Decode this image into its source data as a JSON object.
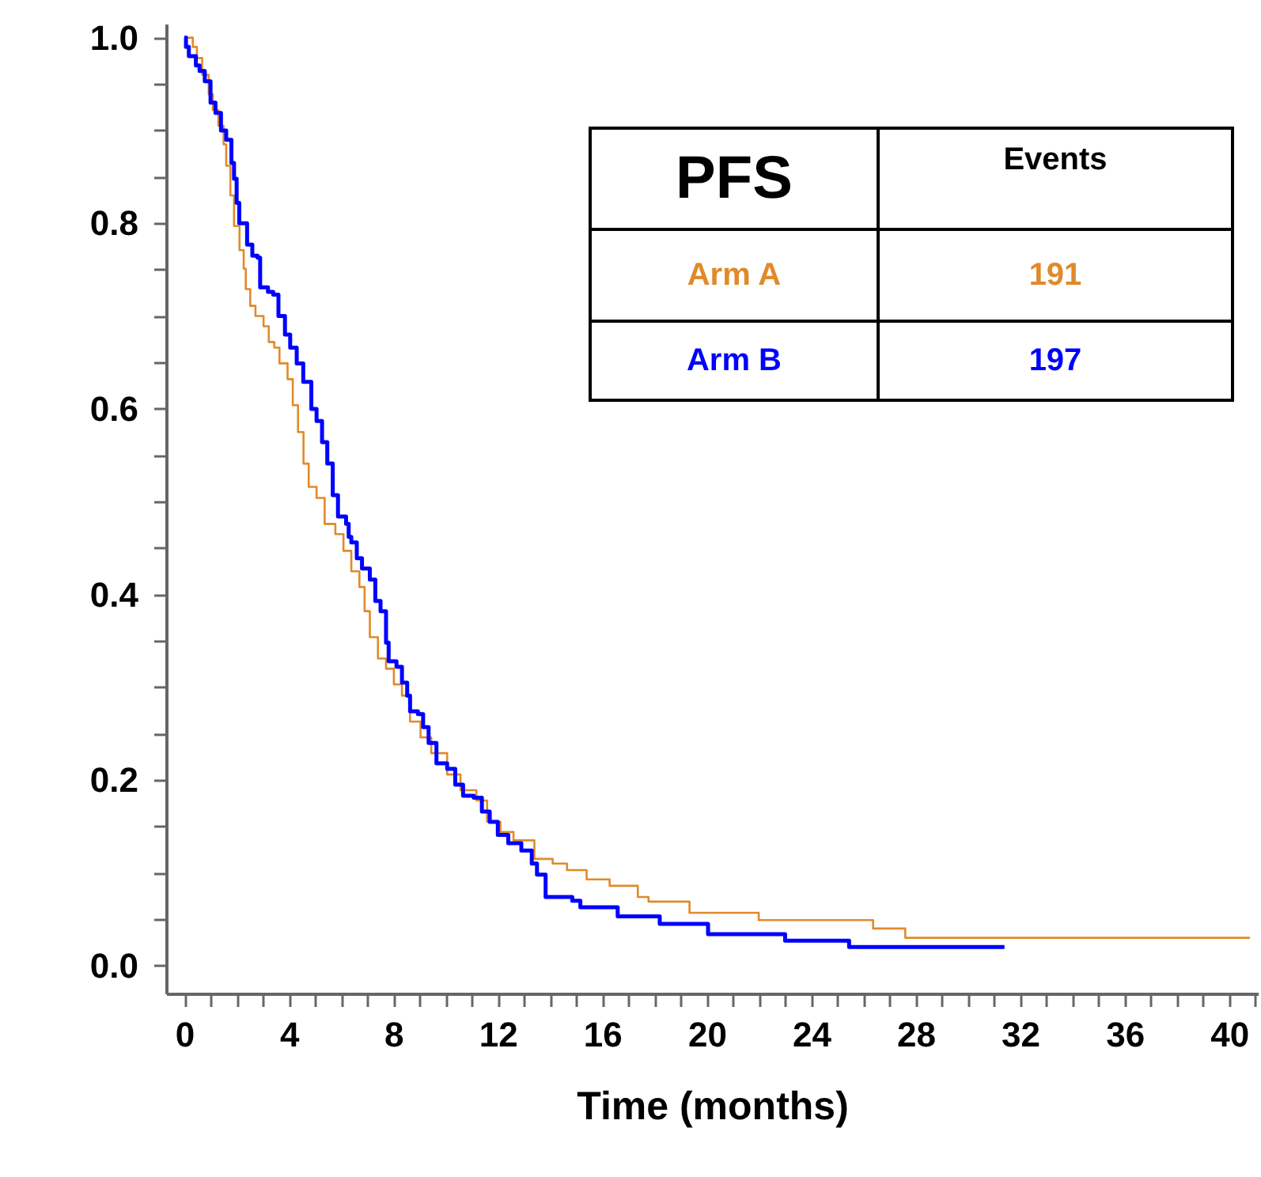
{
  "chart_data": {
    "type": "step",
    "xlabel": "Time (months)",
    "legend_title": "PFS",
    "annotations": [
      "Events",
      "191",
      "197"
    ],
    "legend": "top right",
    "xlim": [
      -0.7,
      41.1
    ],
    "ylim": [
      -0.03,
      1.015
    ],
    "xticks": [
      0,
      {
        "value": 1,
        "label": null
      },
      {
        "value": 2,
        "label": null
      },
      {
        "value": 3,
        "label": null
      },
      4,
      {
        "value": 5,
        "label": null
      },
      {
        "value": 6,
        "label": null
      },
      {
        "value": 7,
        "label": null
      },
      8,
      {
        "value": 9,
        "label": null
      },
      {
        "value": 10,
        "label": null
      },
      {
        "value": 11,
        "label": null
      },
      12,
      {
        "value": 13,
        "label": null
      },
      {
        "value": 14,
        "label": null
      },
      {
        "value": 15,
        "label": null
      },
      16,
      {
        "value": 17,
        "label": null
      },
      {
        "value": 18,
        "label": null
      },
      {
        "value": 19,
        "label": null
      },
      20,
      {
        "value": 21,
        "label": null
      },
      {
        "value": 22,
        "label": null
      },
      {
        "value": 23,
        "label": null
      },
      24,
      {
        "value": 25,
        "label": null
      },
      {
        "value": 26,
        "label": null
      },
      {
        "value": 27,
        "label": null
      },
      28,
      {
        "value": 29,
        "label": null
      },
      {
        "value": 30,
        "label": null
      },
      {
        "value": 31,
        "label": null
      },
      32,
      {
        "value": 33,
        "label": null
      },
      {
        "value": 34,
        "label": null
      },
      {
        "value": 35,
        "label": null
      },
      36,
      {
        "value": 37,
        "label": null
      },
      {
        "value": 38,
        "label": null
      },
      {
        "value": 39,
        "label": null
      },
      40,
      {
        "value": 41,
        "label": null
      }
    ],
    "yticks": [
      {
        "value": 0,
        "label": "0.0"
      },
      {
        "value": 0.05,
        "label": null
      },
      {
        "value": 0.1,
        "label": null
      },
      {
        "value": 0.15,
        "label": null
      },
      {
        "value": 0.2,
        "label": "0.2"
      },
      {
        "value": 0.25,
        "label": null
      },
      {
        "value": 0.3,
        "label": null
      },
      {
        "value": 0.35,
        "label": null
      },
      {
        "value": 0.4,
        "label": "0.4"
      },
      {
        "value": 0.45,
        "label": null
      },
      {
        "value": 0.5,
        "label": null
      },
      {
        "value": 0.55,
        "label": null
      },
      {
        "value": 0.6,
        "label": "0.6"
      },
      {
        "value": 0.65,
        "label": null
      },
      {
        "value": 0.7,
        "label": null
      },
      {
        "value": 0.75,
        "label": null
      },
      {
        "value": 0.8,
        "label": "0.8"
      },
      {
        "value": 0.85,
        "label": null
      },
      {
        "value": 0.9,
        "label": null
      },
      {
        "value": 0.95,
        "label": null
      },
      {
        "value": 1.0,
        "label": "1.0"
      }
    ],
    "series": [
      {
        "name": "Arm A",
        "color": "#e08a2a",
        "x": [
          0,
          0.32,
          0.48,
          0.68,
          0.93,
          1.09,
          1.3,
          1.5,
          1.6,
          1.76,
          1.9,
          2.11,
          2.27,
          2.35,
          2.52,
          2.72,
          3.03,
          3.23,
          3.44,
          3.64,
          3.95,
          4.15,
          4.35,
          4.56,
          4.76,
          5.06,
          5.37,
          5.78,
          6.09,
          6.39,
          6.7,
          6.9,
          7.1,
          7.41,
          7.72,
          8.02,
          8.33,
          8.64,
          9.04,
          9.45,
          10.06,
          10.57,
          11.18,
          11.59,
          12.1,
          12.6,
          13.4,
          14.1,
          14.65,
          15.4,
          16.28,
          17.36,
          17.77,
          19.34,
          21.99,
          26.37,
          27.6,
          40.8
        ],
        "values": [
          1.0,
          0.99,
          0.978,
          0.96,
          0.939,
          0.922,
          0.905,
          0.885,
          0.862,
          0.83,
          0.797,
          0.771,
          0.751,
          0.729,
          0.711,
          0.7,
          0.689,
          0.672,
          0.666,
          0.649,
          0.632,
          0.604,
          0.575,
          0.541,
          0.516,
          0.504,
          0.476,
          0.465,
          0.447,
          0.425,
          0.408,
          0.382,
          0.354,
          0.331,
          0.32,
          0.303,
          0.291,
          0.263,
          0.246,
          0.229,
          0.206,
          0.189,
          0.178,
          0.155,
          0.144,
          0.135,
          0.115,
          0.11,
          0.103,
          0.093,
          0.086,
          0.074,
          0.069,
          0.057,
          0.049,
          0.04,
          0.03,
          0.03
        ]
      },
      {
        "name": "Arm B",
        "color": "#0000ff",
        "x": [
          0,
          0.06,
          0.17,
          0.44,
          0.58,
          0.78,
          1.0,
          1.19,
          1.4,
          1.6,
          1.8,
          1.9,
          2.0,
          2.1,
          2.4,
          2.6,
          2.8,
          2.9,
          3.2,
          3.4,
          3.6,
          3.85,
          4.05,
          4.3,
          4.55,
          4.86,
          5.06,
          5.27,
          5.47,
          5.68,
          5.88,
          6.19,
          6.29,
          6.39,
          6.6,
          6.8,
          7.1,
          7.31,
          7.51,
          7.72,
          7.82,
          8.12,
          8.33,
          8.53,
          8.64,
          8.94,
          9.14,
          9.35,
          9.65,
          10.06,
          10.37,
          10.67,
          11.08,
          11.39,
          11.69,
          12.0,
          12.4,
          12.9,
          13.3,
          13.5,
          13.83,
          14.85,
          15.16,
          16.59,
          18.2,
          20.05,
          23.0,
          25.45,
          31.4
        ],
        "values": [
          1.0,
          0.99,
          0.98,
          0.97,
          0.964,
          0.953,
          0.93,
          0.919,
          0.9,
          0.89,
          0.865,
          0.848,
          0.822,
          0.8,
          0.777,
          0.765,
          0.763,
          0.731,
          0.726,
          0.723,
          0.7,
          0.68,
          0.666,
          0.649,
          0.629,
          0.6,
          0.587,
          0.564,
          0.541,
          0.507,
          0.484,
          0.476,
          0.462,
          0.456,
          0.439,
          0.428,
          0.416,
          0.393,
          0.382,
          0.348,
          0.328,
          0.322,
          0.305,
          0.291,
          0.274,
          0.271,
          0.257,
          0.24,
          0.218,
          0.212,
          0.195,
          0.183,
          0.181,
          0.166,
          0.155,
          0.141,
          0.132,
          0.124,
          0.11,
          0.098,
          0.074,
          0.07,
          0.063,
          0.053,
          0.045,
          0.034,
          0.027,
          0.02,
          0.02
        ]
      }
    ]
  }
}
